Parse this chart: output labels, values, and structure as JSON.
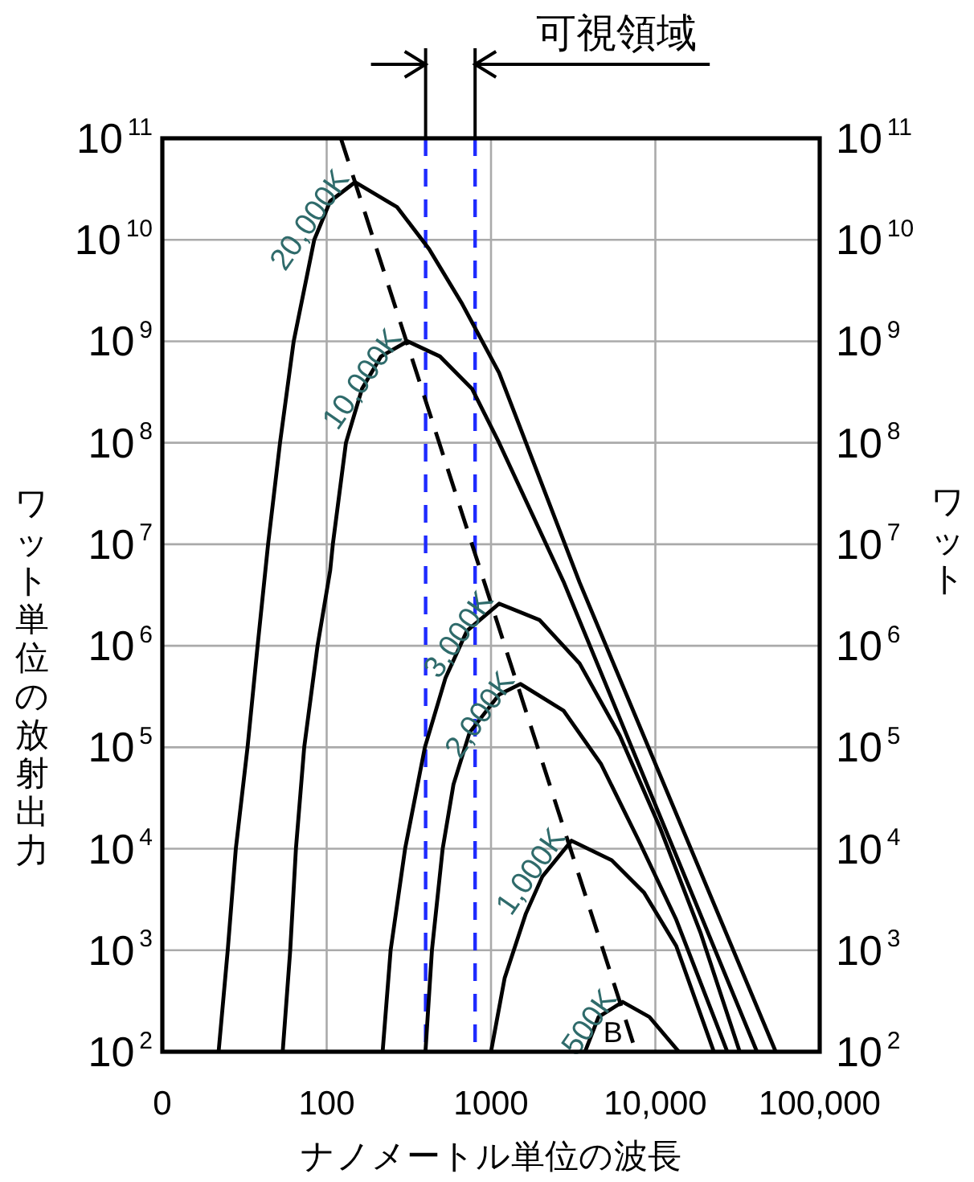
{
  "chart_data": {
    "type": "line",
    "xlabel": "ナノメートル単位の波長",
    "ylabel": "ワット単位の放射出力",
    "y2label": "ワット",
    "log": "xy",
    "xlim": [
      0,
      100000
    ],
    "xticks": [
      0,
      100,
      1000,
      {
        "value": 10000,
        "label": "10,000"
      },
      {
        "value": 100000,
        "label": "100,000"
      }
    ],
    "ylim": [
      100,
      100000000000
    ],
    "yticks": [
      {
        "value": 100,
        "label": "10$^{2}$"
      },
      {
        "value": 1000,
        "label": "10$^{3}$"
      },
      {
        "value": 10000,
        "label": "10$^{4}$"
      },
      {
        "value": 100000,
        "label": "10$^{5}$"
      },
      {
        "value": 1000000,
        "label": "10$^{6}$"
      },
      {
        "value": 10000000,
        "label": "10$^{7}$"
      },
      {
        "value": 100000000,
        "label": "10$^{8}$"
      },
      {
        "value": 1000000000,
        "label": "10$^{9}$"
      },
      {
        "value": 10000000000,
        "label": "10$^{10}$"
      },
      {
        "value": 100000000000,
        "label": "10$^{11}$"
      }
    ],
    "grid": true,
    "line_style": "solid",
    "ref_lines": [
      {
        "axis": "x",
        "value": 400,
        "label": null,
        "color": "#1f2bff",
        "line_style": "dashed"
      },
      {
        "axis": "x",
        "value": 800,
        "label": null,
        "color": "#1f2bff",
        "line_style": "dashed"
      }
    ],
    "annotations": [
      "可視領域",
      "B"
    ],
    "series": [
      {
        "name": "20,000K",
        "color": "#000000",
        "x": [
          22,
          25,
          28,
          33,
          38,
          44,
          52,
          63,
          84,
          105,
          149,
          268,
          420,
          661,
          1120,
          3460,
          54000
        ],
        "values": [
          100,
          1000,
          10000,
          100000,
          1000000,
          10000000,
          100000000,
          1000000000,
          10000000000,
          24000000000,
          37000000000,
          21000000000,
          8100000000,
          2400000000,
          490000000,
          4200000,
          100
        ]
      },
      {
        "name": "10,000K",
        "color": "#000000",
        "x": [
          54,
          60,
          65,
          73,
          88,
          105,
          109,
          131,
          164,
          214,
          311,
          489,
          767,
          1120,
          2760,
          41500
        ],
        "values": [
          100,
          1000,
          10000,
          100000,
          1000000,
          5500000,
          10000000,
          100000000,
          340000000,
          710000000,
          1000000000,
          710000000,
          340000000,
          100000000,
          4300000,
          100
        ]
      },
      {
        "name": "3,000K",
        "color": "#000000",
        "x": [
          219,
          245,
          300,
          396,
          528,
          713,
          1120,
          1970,
          3460,
          6080,
          10700,
          18800,
          32600
        ],
        "values": [
          100,
          1000,
          10000,
          100000,
          480000,
          1400000,
          2600000,
          1800000,
          670000,
          130000,
          16000,
          1500,
          100
        ]
      },
      {
        "name": "2,000K",
        "color": "#000000",
        "x": [
          399,
          437,
          508,
          591,
          741,
          1120,
          1510,
          2760,
          4680,
          7930,
          13400,
          27400
        ],
        "values": [
          100,
          1000,
          10000,
          43000,
          140000,
          330000,
          420000,
          230000,
          68000,
          12000,
          2000,
          100
        ]
      },
      {
        "name": "1,000K",
        "color": "#000000",
        "x": [
          1000,
          1210,
          1630,
          2050,
          3090,
          5430,
          8530,
          13400,
          22700
        ],
        "values": [
          100,
          530,
          2300,
          5300,
          12000,
          7700,
          3700,
          1100,
          100
        ]
      },
      {
        "name": "500K",
        "color": "#000000",
        "x": [
          3730,
          4510,
          6320,
          9200,
          13900
        ],
        "values": [
          100,
          220,
          310,
          220,
          100
        ]
      },
      {
        "color": "#000000",
        "line_style": "dashed",
        "x": [
          122,
          7620
        ],
        "values": [
          100000000000,
          100
        ]
      }
    ]
  }
}
